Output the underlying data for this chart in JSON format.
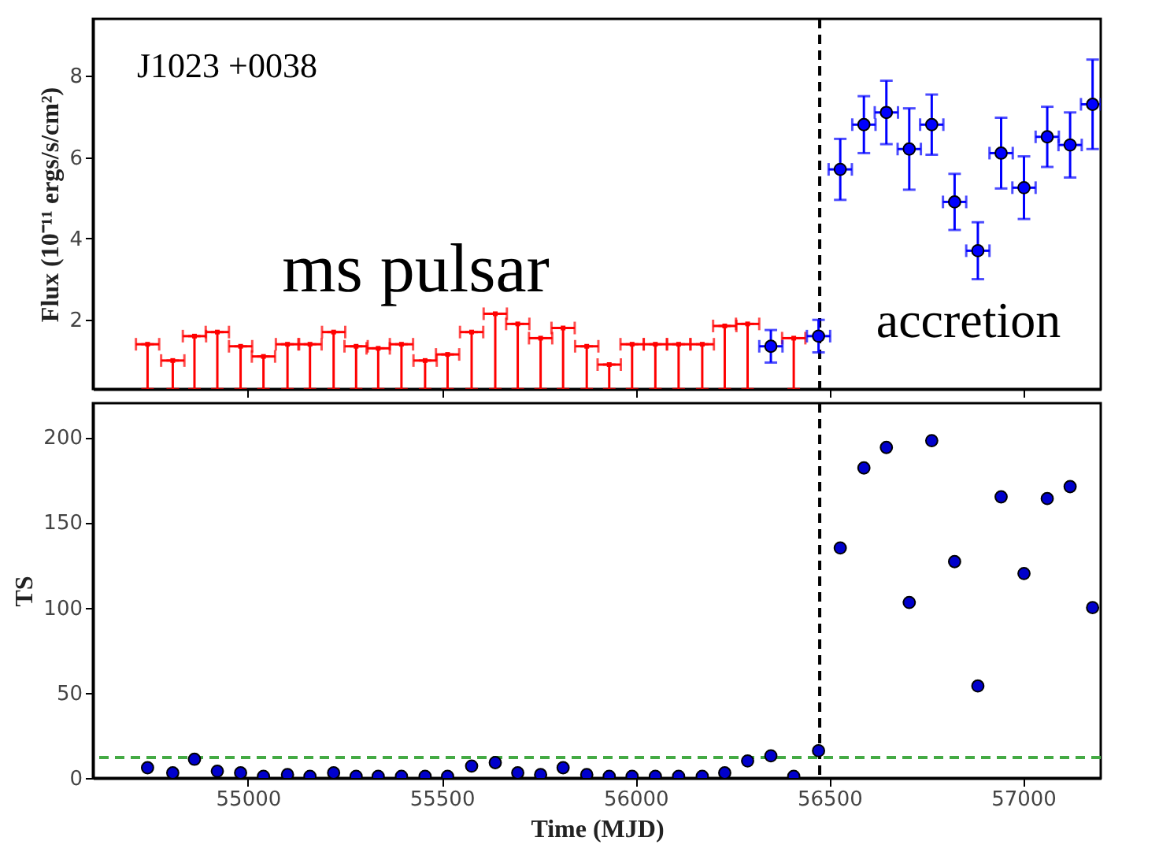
{
  "chart_data": [
    {
      "type": "scatter",
      "ylabel": "Flux (10⁻¹¹ ergs/s/cm²)",
      "annotations": [
        "J1023 +0038",
        "ms pulsar",
        "accretion"
      ],
      "xlim": [
        54600,
        57200
      ],
      "xticks": [
        55000,
        55500,
        56000,
        56500,
        57000
      ],
      "ylim": [
        0.3,
        9.4
      ],
      "yticks": [
        2,
        4,
        6,
        8
      ],
      "tick_labels": "y",
      "ref_lines": [
        {
          "axis": "x",
          "value": 56475,
          "color": "#000000",
          "line_style": "dashed"
        }
      ],
      "series": [
        {
          "color": "#ff0000",
          "marker": "square",
          "x": [
            54741,
            54806,
            54862,
            54921,
            54981,
            55040,
            55102,
            55160,
            55221,
            55279,
            55336,
            55396,
            55457,
            55515,
            55577,
            55638,
            55696,
            55755,
            55813,
            55874,
            55932,
            55991,
            56051,
            56111,
            56172,
            56230,
            56289,
            56408
          ],
          "values": [
            1.4,
            1.0,
            1.6,
            1.7,
            1.35,
            1.1,
            1.4,
            1.4,
            1.7,
            1.35,
            1.3,
            1.4,
            1.0,
            1.15,
            1.7,
            2.15,
            1.9,
            1.55,
            1.8,
            1.35,
            0.9,
            1.4,
            1.4,
            1.4,
            1.4,
            1.85,
            1.9,
            1.55
          ],
          "errors": [
            [
              0.3,
              1.4
            ],
            [
              0.3,
              1.0
            ],
            [
              0.3,
              1.6
            ],
            [
              0.3,
              1.7
            ],
            [
              0.3,
              1.35
            ],
            [
              0.3,
              1.1
            ],
            [
              0.3,
              1.4
            ],
            [
              0.3,
              1.4
            ],
            [
              0.3,
              1.7
            ],
            [
              0.3,
              1.35
            ],
            [
              0.3,
              1.3
            ],
            [
              0.3,
              1.4
            ],
            [
              0.3,
              1.0
            ],
            [
              0.3,
              1.15
            ],
            [
              0.3,
              1.7
            ],
            [
              0.3,
              2.15
            ],
            [
              0.3,
              1.9
            ],
            [
              0.3,
              1.55
            ],
            [
              0.3,
              1.8
            ],
            [
              0.3,
              1.35
            ],
            [
              0.3,
              0.9
            ],
            [
              0.3,
              1.4
            ],
            [
              0.3,
              1.4
            ],
            [
              0.3,
              1.4
            ],
            [
              0.3,
              1.4
            ],
            [
              0.3,
              1.85
            ],
            [
              0.3,
              1.9
            ],
            [
              0.3,
              1.55
            ]
          ],
          "xerrors": [
            30,
            30,
            30,
            30,
            30,
            30,
            30,
            30,
            30,
            30,
            30,
            30,
            30,
            30,
            30,
            30,
            30,
            30,
            30,
            30,
            30,
            30,
            30,
            30,
            30,
            30,
            30,
            30
          ]
        },
        {
          "color": "#0000ff",
          "marker": "circle",
          "x": [
            56349,
            56472,
            56528,
            56589,
            56647,
            56706,
            56764,
            56823,
            56883,
            56943,
            57002,
            57062,
            57121,
            57179
          ],
          "values": [
            1.35,
            1.6,
            5.7,
            6.8,
            7.1,
            6.2,
            6.8,
            4.9,
            3.7,
            6.1,
            5.25,
            6.5,
            6.3,
            7.3
          ],
          "errors": [
            0.4,
            0.4,
            0.75,
            0.7,
            0.78,
            1.0,
            0.74,
            0.69,
            0.7,
            0.87,
            0.77,
            0.74,
            0.8,
            1.1
          ],
          "xerrors": [
            30,
            30,
            30,
            30,
            30,
            30,
            30,
            30,
            30,
            30,
            30,
            30,
            30,
            [
              57149,
              57200
            ]
          ]
        }
      ]
    },
    {
      "type": "scatter",
      "xlabel": "Time (MJD)",
      "ylabel": "TS",
      "xlim": [
        54600,
        57200
      ],
      "xticks": [
        55000,
        55500,
        56000,
        56500,
        57000
      ],
      "ylim": [
        0,
        220
      ],
      "yticks": [
        0,
        50,
        100,
        150,
        200
      ],
      "ref_lines": [
        {
          "axis": "x",
          "value": 56475,
          "color": "#000000",
          "line_style": "dashed"
        },
        {
          "axis": "y",
          "value": 12,
          "color": "#44aa44",
          "line_style": "dashed"
        }
      ],
      "series": [
        {
          "color": "#0000cc",
          "marker": "circle",
          "x": [
            54741,
            54806,
            54862,
            54921,
            54981,
            55040,
            55102,
            55160,
            55221,
            55279,
            55336,
            55396,
            55457,
            55515,
            55577,
            55638,
            55696,
            55755,
            55813,
            55874,
            55932,
            55991,
            56051,
            56111,
            56172,
            56230,
            56289,
            56349,
            56408,
            56472,
            56528,
            56589,
            56647,
            56706,
            56764,
            56823,
            56883,
            56943,
            57002,
            57062,
            57121,
            57179
          ],
          "values": [
            6,
            3,
            11,
            4,
            3,
            1,
            2,
            1,
            3,
            1,
            1,
            1,
            1,
            1,
            7,
            9,
            3,
            2,
            6,
            2,
            1,
            1,
            1,
            1,
            1,
            3,
            10,
            13,
            1,
            16,
            135,
            182,
            194,
            103,
            198,
            127,
            54,
            165,
            120,
            164,
            171,
            100
          ]
        }
      ]
    }
  ]
}
